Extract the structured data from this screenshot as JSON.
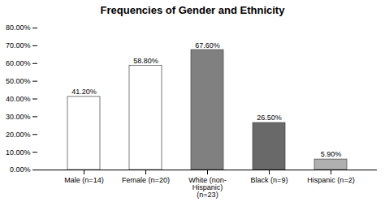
{
  "chart_data": {
    "type": "bar",
    "title": "Frequencies of Gender and Ethnicity",
    "categories": [
      "Male (n=14)",
      "Female (n=20)",
      "White (non-\nHispanic)\n(n=23)",
      "Black (n=9)",
      "Hispanic (n=2)"
    ],
    "values": [
      41.2,
      58.8,
      67.6,
      26.5,
      5.9
    ],
    "value_labels": [
      "41.20%",
      "58.80%",
      "67.60%",
      "26.50%",
      "5.90%"
    ],
    "colors": [
      "#ffffff",
      "#ffffff",
      "#808080",
      "#696969",
      "#b0b0b0"
    ],
    "ylim": [
      0,
      80
    ],
    "yticks": [
      {
        "value": 0,
        "label": "0.00%"
      },
      {
        "value": 10,
        "label": "10.00%"
      },
      {
        "value": 20,
        "label": "20.00%"
      },
      {
        "value": 30,
        "label": "30.00%"
      },
      {
        "value": 40,
        "label": "40.00%"
      },
      {
        "value": 50,
        "label": "50.00%"
      },
      {
        "value": 60,
        "label": "60.00%"
      },
      {
        "value": 70,
        "label": "70.00%"
      },
      {
        "value": 80,
        "label": "80.00%"
      }
    ],
    "data_labels": true,
    "grid": false
  }
}
